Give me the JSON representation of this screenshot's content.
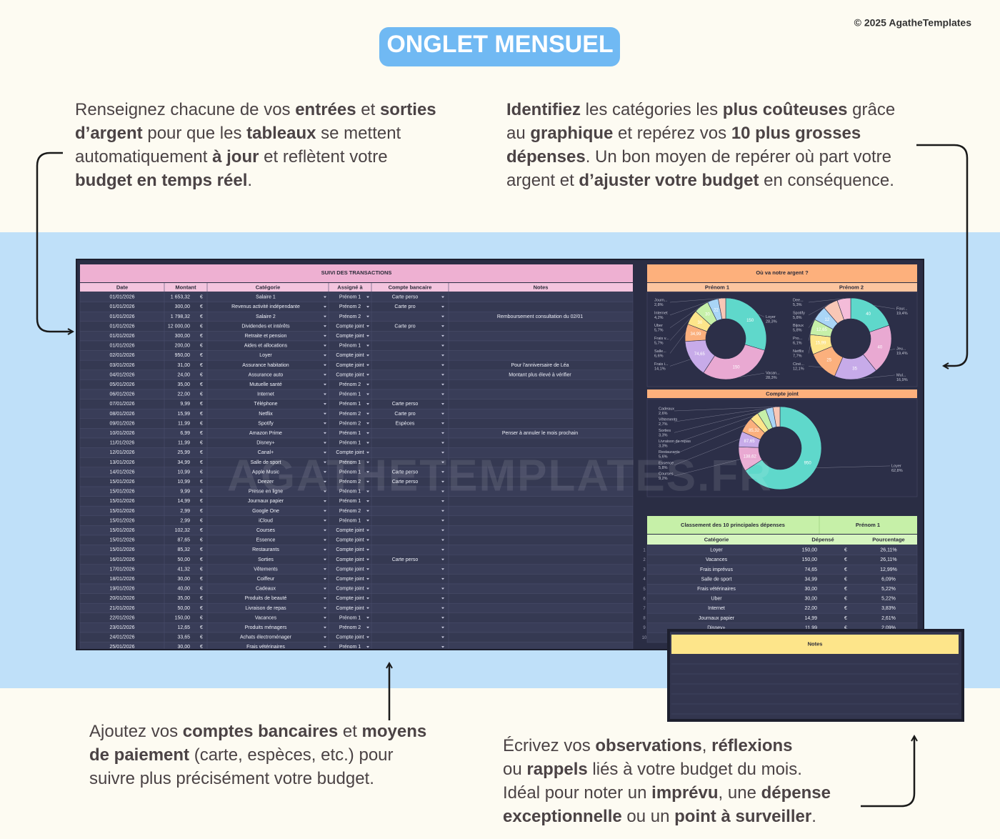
{
  "copyright": "© 2025 AgatheTemplates",
  "title": "ONGLET MENSUEL",
  "callouts": [
    {
      "lines": [
        [
          {
            "t": "Renseignez chacune de vos "
          },
          {
            "t": "entrées",
            "b": true
          },
          {
            "t": " et "
          },
          {
            "t": "sorties",
            "b": true
          }
        ],
        [
          {
            "t": "d’argent",
            "b": true
          },
          {
            "t": " pour que les "
          },
          {
            "t": "tableaux",
            "b": true
          },
          {
            "t": " se mettent"
          }
        ],
        [
          {
            "t": "automatiquement "
          },
          {
            "t": "à jour",
            "b": true
          },
          {
            "t": " et reflètent votre"
          }
        ],
        [
          {
            "t": "budget en temps réel",
            "b": true
          },
          {
            "t": "."
          }
        ]
      ]
    },
    {
      "lines": [
        [
          {
            "t": "Identifiez",
            "b": true
          },
          {
            "t": " les catégories les "
          },
          {
            "t": "plus coûteuses",
            "b": true
          },
          {
            "t": " grâce"
          }
        ],
        [
          {
            "t": "au "
          },
          {
            "t": "graphique",
            "b": true
          },
          {
            "t": " et repérez vos "
          },
          {
            "t": "10 plus grosses",
            "b": true
          }
        ],
        [
          {
            "t": "dépenses",
            "b": true
          },
          {
            "t": ". Un bon moyen de repérer où part votre"
          }
        ],
        [
          {
            "t": "argent et "
          },
          {
            "t": "d’ajuster votre budget",
            "b": true
          },
          {
            "t": " en conséquence."
          }
        ]
      ]
    },
    {
      "lines": [
        [
          {
            "t": "Ajoutez vos "
          },
          {
            "t": "comptes bancaires",
            "b": true
          },
          {
            "t": " et "
          },
          {
            "t": "moyens",
            "b": true
          }
        ],
        [
          {
            "t": "de paiement",
            "b": true
          },
          {
            "t": " (carte, espèces, etc.) pour"
          }
        ],
        [
          {
            "t": "suivre plus précisément votre budget."
          }
        ]
      ]
    },
    {
      "lines": [
        [
          {
            "t": "Écrivez vos "
          },
          {
            "t": "observations",
            "b": true
          },
          {
            "t": ", "
          },
          {
            "t": "réflexions",
            "b": true
          }
        ],
        [
          {
            "t": "ou "
          },
          {
            "t": "rappels",
            "b": true
          },
          {
            "t": " liés à votre budget du mois."
          }
        ],
        [
          {
            "t": "Idéal pour noter un "
          },
          {
            "t": "imprévu",
            "b": true
          },
          {
            "t": ", une "
          },
          {
            "t": "dépense",
            "b": true
          }
        ],
        [
          {
            "t": "exceptionnelle",
            "b": true
          },
          {
            "t": " ou un "
          },
          {
            "t": "point à surveiller",
            "b": true
          },
          {
            "t": "."
          }
        ]
      ]
    }
  ],
  "watermark": "AGATHETEMPLATES.FR",
  "transactions": {
    "title": "SUIVI DES TRANSACTIONS",
    "headers": [
      "Date",
      "Montant",
      "Catégorie",
      "Assigné à",
      "Compte bancaire",
      "Notes"
    ],
    "currency": "€",
    "rows": [
      [
        "01/01/2026",
        "1 653,32",
        "Salaire 1",
        "Prénom 1",
        "Carte perso",
        null
      ],
      [
        "01/01/2026",
        "300,00",
        "Revenus activité indépendante",
        "Prénom 2",
        "Carte pro",
        null
      ],
      [
        "01/01/2026",
        "1 798,32",
        "Salaire 2",
        "Prénom 2",
        null,
        "Remboursement consultation du 02/01"
      ],
      [
        "01/01/2026",
        "12 000,00",
        "Dividendes et intérêts",
        "Compte joint",
        "Carte pro",
        null
      ],
      [
        "01/01/2026",
        "300,00",
        "Retraite et pension",
        "Compte joint",
        null,
        null
      ],
      [
        "01/01/2026",
        "200,00",
        "Aides et allocations",
        "Prénom 1",
        null,
        null
      ],
      [
        "02/01/2026",
        "950,00",
        "Loyer",
        "Compte joint",
        null,
        null
      ],
      [
        "03/01/2026",
        "31,00",
        "Assurance habitation",
        "Compte joint",
        null,
        "Pour l'anniversaire de Léa"
      ],
      [
        "04/01/2026",
        "24,00",
        "Assurance auto",
        "Compte joint",
        null,
        "Montant plus élevé à vérifier"
      ],
      [
        "05/01/2026",
        "35,00",
        "Mutuelle santé",
        "Prénom 2",
        null,
        null
      ],
      [
        "06/01/2026",
        "22,00",
        "Internet",
        "Prénom 1",
        null,
        null
      ],
      [
        "07/01/2026",
        "9,99",
        "Téléphone",
        "Prénom 1",
        "Carte perso",
        null
      ],
      [
        "08/01/2026",
        "15,99",
        "Netflix",
        "Prénom 2",
        "Carte pro",
        null
      ],
      [
        "09/01/2026",
        "11,99",
        "Spotify",
        "Prénom 2",
        "Espèces",
        null
      ],
      [
        "10/01/2026",
        "6,99",
        "Amazon Prime",
        "Prénom 1",
        null,
        "Penser à annuler le mois prochain"
      ],
      [
        "11/01/2026",
        "11,99",
        "Disney+",
        "Prénom 1",
        null,
        null
      ],
      [
        "12/01/2026",
        "25,99",
        "Canal+",
        "Compte joint",
        null,
        null
      ],
      [
        "13/01/2026",
        "34,99",
        "Salle de sport",
        "Prénom 1",
        null,
        null
      ],
      [
        "14/01/2026",
        "10,99",
        "Apple Music",
        "Prénom 1",
        "Carte perso",
        null
      ],
      [
        "15/01/2026",
        "10,99",
        "Deezer",
        "Prénom 2",
        "Carte perso",
        null
      ],
      [
        "15/01/2026",
        "9,99",
        "Presse en ligne",
        "Prénom 1",
        null,
        null
      ],
      [
        "15/01/2026",
        "14,99",
        "Journaux papier",
        "Prénom 1",
        null,
        null
      ],
      [
        "15/01/2026",
        "2,99",
        "Google One",
        "Prénom 2",
        null,
        null
      ],
      [
        "15/01/2026",
        "2,99",
        "iCloud",
        "Prénom 1",
        null,
        null
      ],
      [
        "15/01/2026",
        "102,32",
        "Courses",
        "Compte joint",
        null,
        null
      ],
      [
        "15/01/2026",
        "87,65",
        "Essence",
        "Compte joint",
        null,
        null
      ],
      [
        "15/01/2026",
        "85,32",
        "Restaurants",
        "Compte joint",
        null,
        null
      ],
      [
        "16/01/2026",
        "50,00",
        "Sorties",
        "Compte joint",
        "Carte perso",
        null
      ],
      [
        "17/01/2026",
        "41,32",
        "Vêtements",
        "Compte joint",
        null,
        null
      ],
      [
        "18/01/2026",
        "30,00",
        "Coiffeur",
        "Compte joint",
        null,
        null
      ],
      [
        "19/01/2026",
        "40,00",
        "Cadeaux",
        "Compte joint",
        null,
        null
      ],
      [
        "20/01/2026",
        "35,00",
        "Produits de beauté",
        "Compte joint",
        null,
        null
      ],
      [
        "21/01/2026",
        "50,00",
        "Livraison de repas",
        "Compte joint",
        null,
        null
      ],
      [
        "22/01/2026",
        "150,00",
        "Vacances",
        "Prénom 1",
        null,
        null
      ],
      [
        "23/01/2026",
        "12,65",
        "Produits ménagers",
        "Prénom 2",
        null,
        null
      ],
      [
        "24/01/2026",
        "33,65",
        "Achats électroménager",
        "Compte joint",
        null,
        null
      ],
      [
        "25/01/2026",
        "30,00",
        "Frais vétérinaires",
        "Prénom 1",
        null,
        null
      ]
    ]
  },
  "charts_header": "Où va notre argent ?",
  "chart_data": [
    {
      "type": "donut",
      "title": "Prénom 1",
      "labels": [
        "Loyer",
        "Vacan...",
        "Frais i...",
        "Salle...",
        "Frais v...",
        "Uber",
        "Internet",
        "Journ..."
      ],
      "values": [
        150,
        150,
        74.65,
        34.99,
        30,
        30,
        22,
        14.99
      ],
      "value_labels": [
        "150",
        "150",
        "74,65",
        "34,99",
        "30",
        "30",
        "22",
        null
      ],
      "pct_labels": [
        "28,3%",
        "28,3%",
        "14,1%",
        "6,6%",
        "5,7%",
        "5,7%",
        "4,2%",
        "2,8%"
      ],
      "colors": [
        "#5fd8cb",
        "#e9a9d2",
        "#c7abe9",
        "#fbb07d",
        "#fde58a",
        "#c6f0a8",
        "#a9d5f6",
        "#f8c7b6"
      ]
    },
    {
      "type": "donut",
      "title": "Prénom 2",
      "labels": [
        "Four...",
        "Jeu...",
        "Mul...",
        "Ciné...",
        "Netflix",
        "Pro...",
        "Bijoux",
        "Spotify",
        "Dee..."
      ],
      "values": [
        40,
        40,
        35,
        25,
        15.99,
        12.65,
        12,
        11.99,
        10.99
      ],
      "value_labels": [
        "40",
        "40",
        "35",
        "25",
        "15,99",
        "12,65",
        "12",
        null,
        null
      ],
      "pct_labels": [
        "19,4%",
        "19,4%",
        "16,9%",
        "12,1%",
        "7,7%",
        "6,1%",
        "5,8%",
        "5,8%",
        "5,3%"
      ],
      "colors": [
        "#5fd8cb",
        "#e9a9d2",
        "#c7abe9",
        "#fbb07d",
        "#fde58a",
        "#c6f0a8",
        "#a9d5f6",
        "#f8c7b6",
        "#f4bcd9"
      ]
    },
    {
      "type": "donut",
      "title": "Compte joint",
      "labels": [
        "Loyer",
        "Courses",
        "Essence",
        "Restaurants",
        "Livraison de repas",
        "Sorties",
        "Vêtements",
        "Cadeaux"
      ],
      "values": [
        950,
        138.62,
        87.65,
        85.32,
        50,
        50,
        41.32,
        40
      ],
      "value_labels": [
        "950",
        "138,62",
        "87,65",
        "85,32",
        null,
        null,
        null,
        null
      ],
      "pct_labels": [
        "62,8%",
        "9,2%",
        "5,8%",
        "5,6%",
        "3,3%",
        "3,3%",
        "2,7%",
        "2,6%"
      ],
      "colors": [
        "#5fd8cb",
        "#e9a9d2",
        "#c7abe9",
        "#fbb07d",
        "#fde58a",
        "#c6f0a8",
        "#a9d5f6",
        "#f8c7b6"
      ]
    }
  ],
  "top_expenses": {
    "title": "Classement des 10 principales dépenses",
    "owner": "Prénom 1",
    "headers": [
      "Catégorie",
      "Dépensé",
      "Pourcentage"
    ],
    "currency": "€",
    "row_numbers": [
      1,
      2,
      3,
      4,
      5,
      6,
      7,
      8,
      9,
      10
    ],
    "rows": [
      [
        "Loyer",
        "150,00",
        "26,11%"
      ],
      [
        "Vacances",
        "150,00",
        "26,11%"
      ],
      [
        "Frais imprévus",
        "74,65",
        "12,99%"
      ],
      [
        "Salle de sport",
        "34,99",
        "6,09%"
      ],
      [
        "Frais vétérinaires",
        "30,00",
        "5,22%"
      ],
      [
        "Uber",
        "30,00",
        "5,22%"
      ],
      [
        "Internet",
        "22,00",
        "3,83%"
      ],
      [
        "Journaux papier",
        "14,99",
        "2,61%"
      ],
      [
        "Disney+",
        "11,99",
        "2,09%"
      ]
    ]
  },
  "notes": {
    "title": "Notes"
  }
}
